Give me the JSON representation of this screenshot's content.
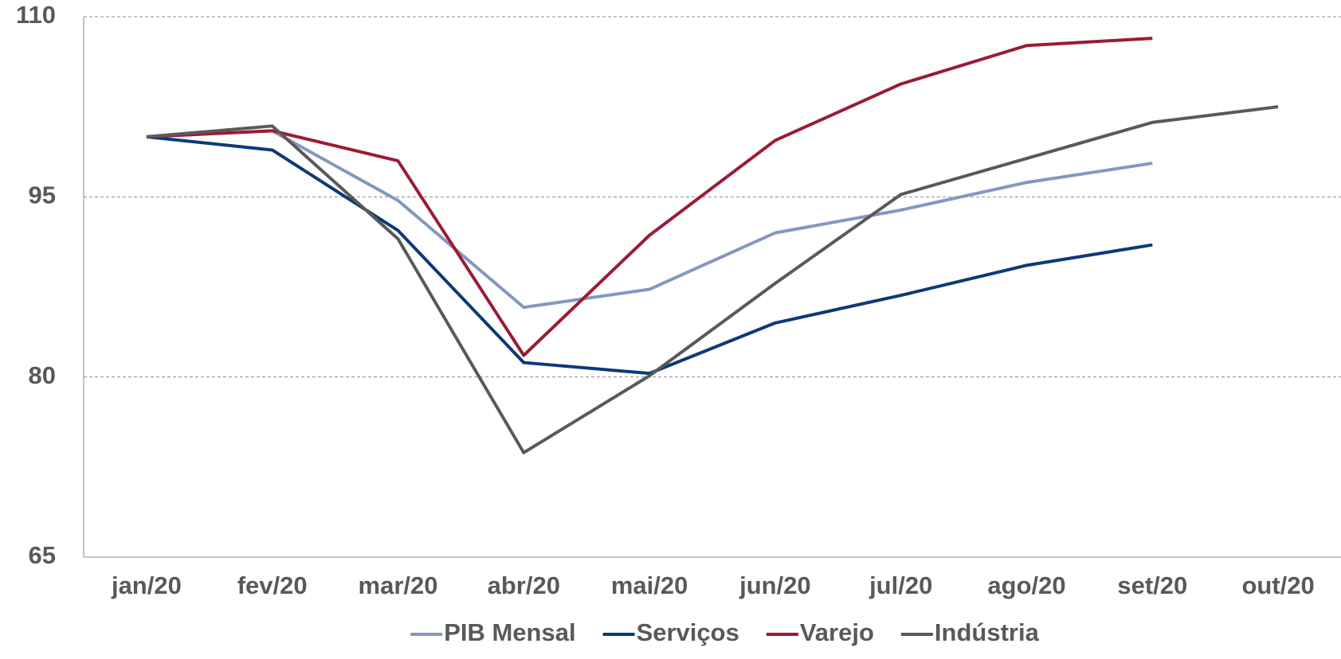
{
  "chart_data": {
    "type": "line",
    "categories": [
      "jan/20",
      "fev/20",
      "mar/20",
      "abr/20",
      "mai/20",
      "jun/20",
      "jul/20",
      "ago/20",
      "set/20",
      "out/20"
    ],
    "series": [
      {
        "name": "PIB Mensal",
        "color": "#8497c0",
        "values": [
          100,
          100.5,
          94.7,
          85.8,
          87.3,
          92.0,
          93.9,
          96.2,
          97.8,
          null
        ]
      },
      {
        "name": "Serviços",
        "color": "#0b3a78",
        "values": [
          100,
          98.9,
          92.2,
          81.2,
          80.3,
          84.5,
          86.8,
          89.3,
          91.0,
          null
        ]
      },
      {
        "name": "Varejo",
        "color": "#9b1b35",
        "values": [
          100,
          100.5,
          98.0,
          81.8,
          91.8,
          99.7,
          104.4,
          107.6,
          108.2,
          null
        ]
      },
      {
        "name": "Indústria",
        "color": "#595959",
        "values": [
          100,
          100.9,
          91.5,
          73.7,
          80.1,
          87.8,
          95.2,
          98.2,
          101.2,
          102.5
        ]
      }
    ],
    "ylim": [
      65,
      110
    ],
    "yticks": [
      65,
      80,
      95,
      110
    ],
    "grid": true,
    "legend": "bottom"
  }
}
